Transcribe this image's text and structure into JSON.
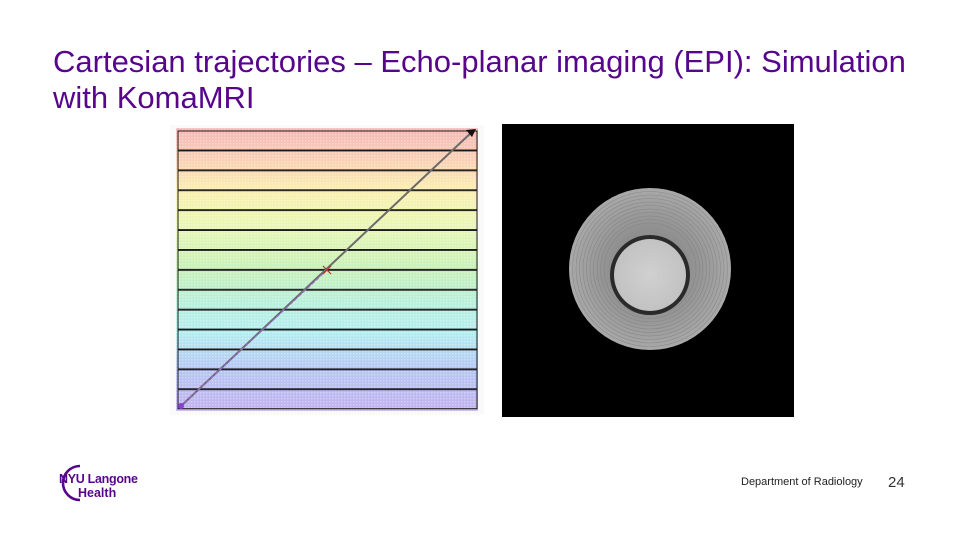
{
  "slide": {
    "title": "Cartesian trajectories – Echo-planar imaging (EPI): Simulation with KomaMRI"
  },
  "figures": {
    "trajectory": {
      "icon": "epi-kspace-trajectory-plot"
    },
    "reconstruction": {
      "icon": "reconstructed-phantom-image"
    }
  },
  "footer": {
    "logo_line1": "NYU Langone",
    "logo_line2": "Health",
    "department": "Department of Radiology",
    "page_number": "24"
  },
  "colors": {
    "title": "#57068c",
    "logo": "#57068c",
    "recon_background": "#000000"
  }
}
